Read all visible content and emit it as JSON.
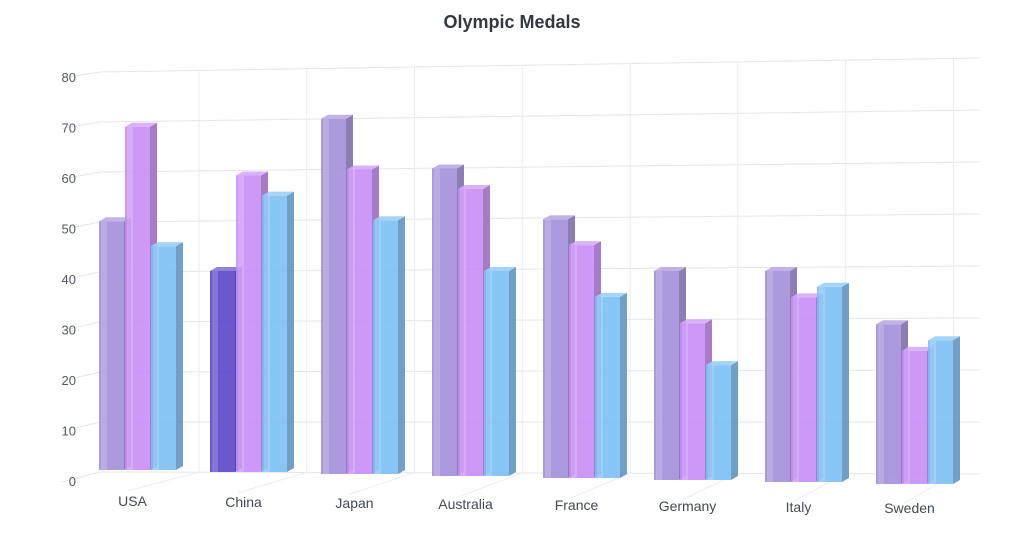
{
  "chart_data": {
    "type": "bar",
    "title": "Olympic Medals",
    "categories": [
      "USA",
      "China",
      "Japan",
      "Australia",
      "France",
      "Germany",
      "Italy",
      "Sweden"
    ],
    "series": [
      {
        "values": [
          50,
          40,
          70,
          60,
          50,
          40,
          40,
          30
        ]
      },
      {
        "values": [
          69,
          59,
          60,
          56,
          45,
          30,
          35,
          25
        ]
      },
      {
        "values": [
          45,
          55,
          50,
          40,
          35,
          22,
          37,
          27
        ]
      }
    ],
    "highlight": {
      "category": "China",
      "series_index": 0,
      "color": "#5b45c9"
    },
    "colors": [
      "#a48fdb",
      "#c98df7",
      "#7cc0f5"
    ],
    "ylim": [
      0,
      80
    ],
    "yticks": [
      0,
      10,
      20,
      30,
      40,
      50,
      60,
      70,
      80
    ],
    "grid": true,
    "three_d": true
  }
}
